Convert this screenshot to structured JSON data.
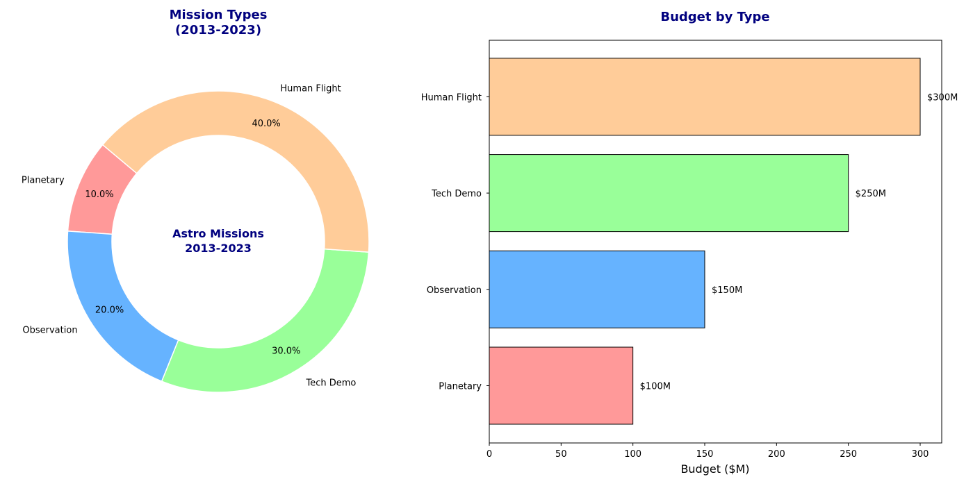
{
  "chart_data": [
    {
      "type": "pie",
      "style": "donut",
      "title": "Mission Types\n(2013-2023)",
      "center_text": "Astro Missions\n2013-2023",
      "categories": [
        "Planetary",
        "Observation",
        "Tech Demo",
        "Human Flight"
      ],
      "values": [
        10.0,
        20.0,
        30.0,
        40.0
      ],
      "percent_labels": [
        "10.0%",
        "20.0%",
        "30.0%",
        "40.0%"
      ],
      "colors": [
        "#ff9999",
        "#66b3ff",
        "#99ff99",
        "#ffcc99"
      ],
      "start_angle_deg": 140
    },
    {
      "type": "bar",
      "orientation": "horizontal",
      "title": "Budget by Type",
      "categories": [
        "Planetary",
        "Observation",
        "Tech Demo",
        "Human Flight"
      ],
      "values": [
        100,
        150,
        250,
        300
      ],
      "value_labels": [
        "$100M",
        "$150M",
        "$250M",
        "$300M"
      ],
      "colors": [
        "#ff9999",
        "#66b3ff",
        "#99ff99",
        "#ffcc99"
      ],
      "xlabel": "Budget ($M)",
      "ylabel": "",
      "xlim": [
        0,
        315
      ],
      "xticks": [
        0,
        50,
        100,
        150,
        200,
        250,
        300
      ],
      "grid": false
    }
  ]
}
